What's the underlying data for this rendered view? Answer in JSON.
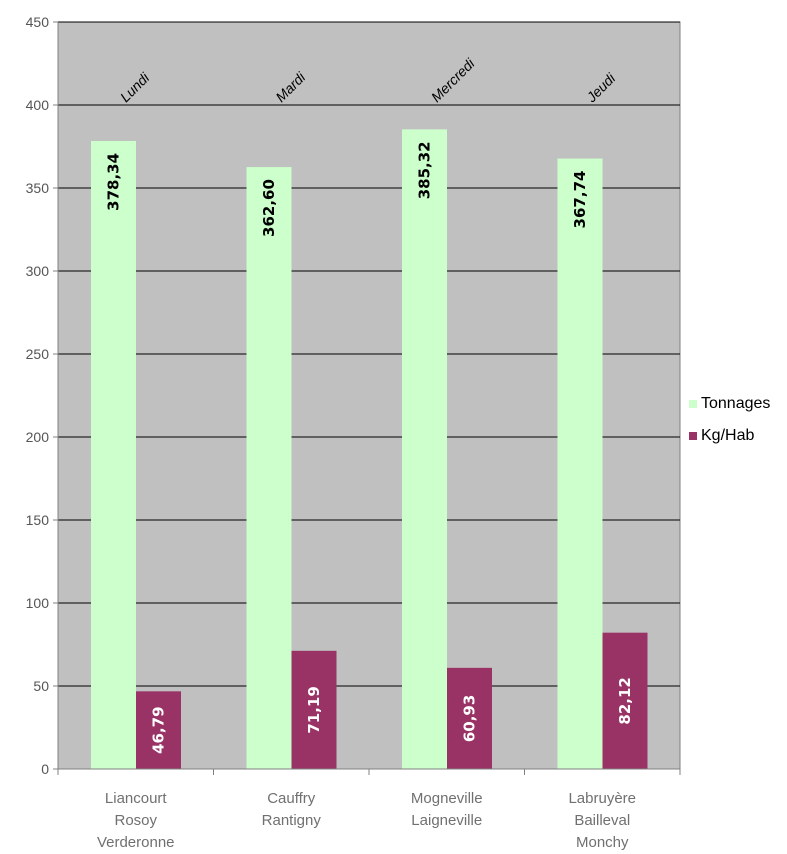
{
  "chart_data": {
    "type": "bar",
    "categories": [
      [
        "Liancourt",
        "Rosoy",
        "Verderonne"
      ],
      [
        "Cauffry",
        "Rantigny"
      ],
      [
        "Mogneville",
        "Laigneville"
      ],
      [
        "Labruyère",
        "Bailleval",
        "Monchy"
      ]
    ],
    "days": [
      "Lundi",
      "Mardi",
      "Mercredi",
      "Jeudi"
    ],
    "series": [
      {
        "name": "Tonnages",
        "values": [
          378.34,
          362.6,
          385.32,
          367.74
        ],
        "labels": [
          "378,34",
          "362,60",
          "385,32",
          "367,74"
        ],
        "color": "#ccffcc",
        "label_color": "#000000"
      },
      {
        "name": "Kg/Hab",
        "values": [
          46.79,
          71.19,
          60.93,
          82.12
        ],
        "labels": [
          "46,79",
          "71,19",
          "60,93",
          "82,12"
        ],
        "color": "#993366",
        "label_color": "#ffffff"
      }
    ],
    "y_ticks": [
      "0",
      "50",
      "100",
      "150",
      "200",
      "250",
      "300",
      "350",
      "400",
      "450"
    ],
    "ylim": [
      0,
      450
    ],
    "grid": true,
    "legend_position": "right",
    "plot_background": "#c0c0c0"
  }
}
